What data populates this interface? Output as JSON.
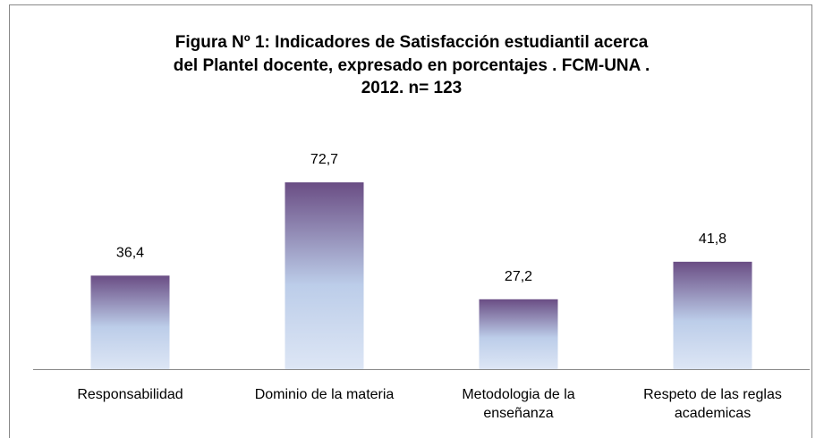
{
  "chart_data": {
    "type": "bar",
    "title": [
      "Figura Nº 1: Indicadores de Satisfacción estudiantil acerca",
      "del Plantel docente, expresado en porcentajes . FCM-UNA .",
      "2012. n= 123"
    ],
    "categories": [
      "Responsabilidad",
      "Dominio de la materia",
      "Metodologia de la enseñanza",
      "Respeto de las reglas academicas"
    ],
    "values": [
      36.4,
      72.7,
      27.2,
      41.8
    ],
    "value_labels": [
      "36,4",
      "72,7",
      "27,2",
      "41,8"
    ],
    "color": [
      "#6a4d84",
      "#bccde9",
      "#dde6f5"
    ]
  }
}
